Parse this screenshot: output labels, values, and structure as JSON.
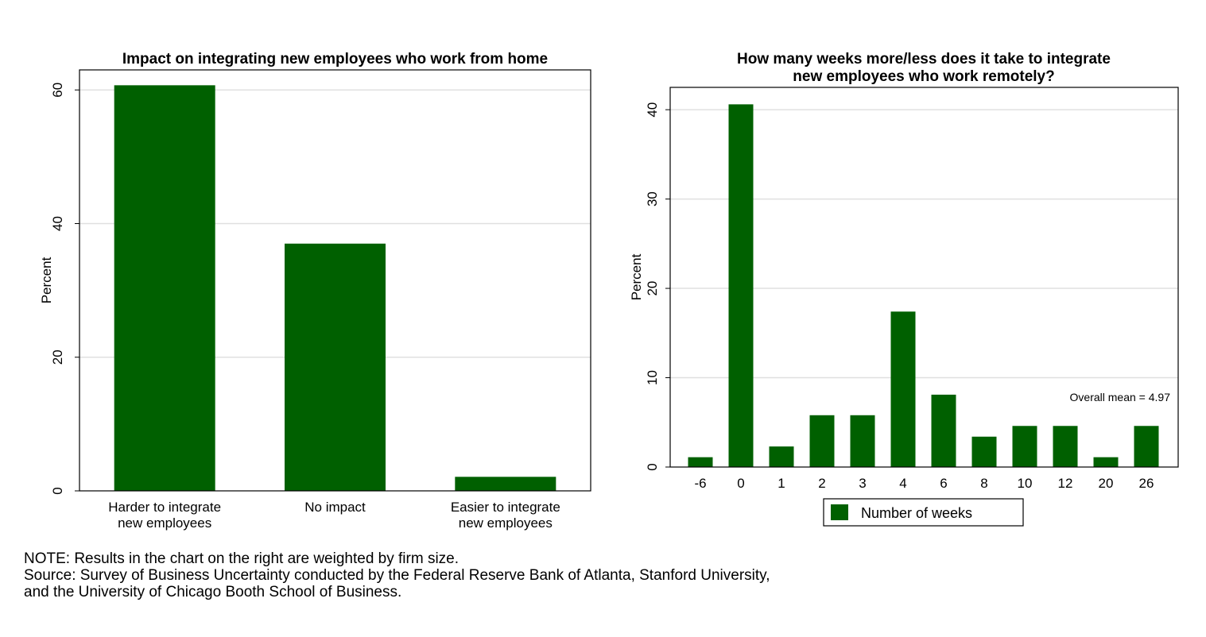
{
  "chart_data": [
    {
      "type": "bar",
      "title": "Impact on integrating new employees who work from home",
      "ylabel": "Percent",
      "xlabel": "",
      "categories": [
        [
          "Harder to integrate",
          "new employees"
        ],
        [
          "No impact"
        ],
        [
          "Easier to integrate",
          "new employees"
        ]
      ],
      "values": [
        60.7,
        37.0,
        2.1
      ],
      "yticks": [
        0,
        20,
        40,
        60
      ],
      "ylim": [
        0,
        63
      ],
      "grid": true,
      "bar_color": "#006000"
    },
    {
      "type": "bar",
      "title": [
        "How many weeks more/less does it take to integrate",
        "new employees who work remotely?"
      ],
      "ylabel": "Percent",
      "xlabel": "",
      "categories": [
        "-6",
        "0",
        "1",
        "2",
        "3",
        "4",
        "6",
        "8",
        "10",
        "12",
        "20",
        "26"
      ],
      "series": [
        {
          "name": "Number of weeks",
          "values": [
            1.1,
            40.6,
            2.3,
            5.8,
            5.8,
            17.4,
            8.1,
            3.4,
            4.6,
            4.6,
            1.1,
            4.6
          ]
        }
      ],
      "yticks": [
        0,
        10,
        20,
        30,
        40
      ],
      "ylim": [
        0,
        42.5
      ],
      "grid": true,
      "annotation": "Overall mean = 4.97",
      "legend_position": "bottom",
      "bar_color": "#006000"
    }
  ],
  "notes": [
    "NOTE: Results in the chart on the right are weighted by firm size.",
    "Source: Survey of Business Uncertainty conducted by the Federal Reserve Bank of Atlanta, Stanford University,",
    "and the University of Chicago Booth School of Business."
  ]
}
